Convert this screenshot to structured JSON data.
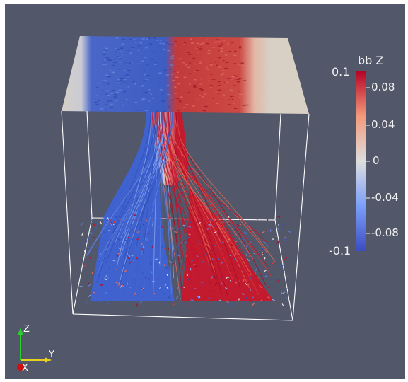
{
  "colorbar": {
    "title": "bb Z",
    "max_label": "0.1",
    "min_label": "-0.1",
    "ticks": [
      "0.08",
      "0.04",
      "0",
      "-0.04",
      "-0.08"
    ],
    "low_color": "#3b4cc0",
    "mid_color": "#dddddd",
    "high_color": "#b40426"
  },
  "orientation_axes": {
    "z_label": "Z",
    "y_label": "Y",
    "x_label": "X",
    "z_color": "#2ad12a",
    "y_color": "#e6d21a",
    "x_color": "#d01010"
  },
  "background_color": "#525769"
}
